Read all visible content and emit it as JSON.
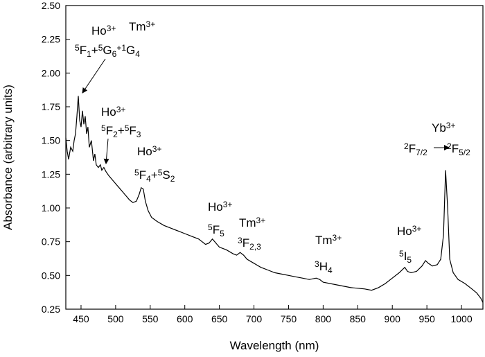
{
  "chart_data": {
    "type": "line",
    "x_label": "Wavelength (nm)",
    "y_label": "Absorbance (arbitrary units)",
    "color": "#000000",
    "xlim": [
      428,
      1031
    ],
    "ylim": [
      0.25,
      2.5
    ],
    "xticks": [
      450,
      500,
      550,
      600,
      650,
      700,
      750,
      800,
      850,
      900,
      950,
      1000
    ],
    "yticks": [
      0.25,
      {
        "value": 0.5,
        "label": "0.50"
      },
      0.75,
      {
        "value": 1,
        "label": "1.00"
      },
      1.25,
      {
        "value": 1.5,
        "label": "1.50"
      },
      1.75,
      {
        "value": 2,
        "label": "2.00"
      },
      2.25,
      {
        "value": 2.5,
        "label": "2.50"
      }
    ],
    "x": [
      428,
      430,
      432,
      435,
      438,
      440,
      442,
      444,
      446,
      448,
      450,
      452,
      454,
      456,
      458,
      460,
      462,
      465,
      468,
      470,
      472,
      475,
      478,
      480,
      483,
      486,
      490,
      495,
      500,
      505,
      510,
      515,
      520,
      525,
      530,
      534,
      537,
      540,
      543,
      547,
      552,
      560,
      570,
      580,
      590,
      600,
      610,
      620,
      630,
      635,
      640,
      645,
      650,
      660,
      670,
      675,
      680,
      685,
      690,
      700,
      710,
      720,
      730,
      740,
      750,
      760,
      770,
      780,
      790,
      795,
      800,
      820,
      840,
      860,
      870,
      880,
      890,
      900,
      910,
      918,
      922,
      927,
      935,
      943,
      948,
      952,
      958,
      965,
      970,
      974,
      977,
      980,
      983,
      988,
      995,
      1005,
      1015,
      1022,
      1028,
      1031
    ],
    "values": [
      1.52,
      1.42,
      1.36,
      1.45,
      1.42,
      1.5,
      1.55,
      1.68,
      1.83,
      1.65,
      1.6,
      1.72,
      1.62,
      1.68,
      1.55,
      1.6,
      1.45,
      1.5,
      1.35,
      1.4,
      1.32,
      1.3,
      1.32,
      1.28,
      1.3,
      1.27,
      1.24,
      1.21,
      1.18,
      1.15,
      1.12,
      1.09,
      1.06,
      1.04,
      1.05,
      1.1,
      1.15,
      1.14,
      1.05,
      0.98,
      0.93,
      0.9,
      0.87,
      0.85,
      0.83,
      0.81,
      0.79,
      0.77,
      0.73,
      0.74,
      0.77,
      0.74,
      0.71,
      0.69,
      0.66,
      0.65,
      0.67,
      0.65,
      0.62,
      0.59,
      0.56,
      0.54,
      0.52,
      0.51,
      0.5,
      0.49,
      0.48,
      0.47,
      0.48,
      0.47,
      0.45,
      0.43,
      0.41,
      0.4,
      0.39,
      0.41,
      0.44,
      0.48,
      0.52,
      0.56,
      0.53,
      0.52,
      0.53,
      0.57,
      0.61,
      0.59,
      0.57,
      0.58,
      0.62,
      0.8,
      1.28,
      1.0,
      0.62,
      0.52,
      0.47,
      0.44,
      0.4,
      0.37,
      0.33,
      0.3
    ],
    "annotations": [
      {
        "parts": [
          {
            "text": "Ho"
          },
          {
            "text": "3+",
            "shift": "sup"
          }
        ]
      },
      {
        "parts": [
          {
            "text": "Tm"
          },
          {
            "text": "3+",
            "shift": "sup"
          }
        ]
      },
      {
        "parts": [
          {
            "text": "5",
            "shift": "sup"
          },
          {
            "text": "F"
          },
          {
            "text": "1",
            "shift": "sub"
          },
          {
            "text": "+"
          },
          {
            "text": "5",
            "shift": "sup"
          },
          {
            "text": "G"
          },
          {
            "text": "6",
            "shift": "sub"
          },
          {
            "text": "+",
            "shift": "sup"
          },
          {
            "text": "1",
            "shift": "sup"
          },
          {
            "text": "G"
          },
          {
            "text": "4",
            "shift": "sub"
          }
        ]
      },
      {
        "parts": [
          {
            "text": "Ho"
          },
          {
            "text": "3+",
            "shift": "sup"
          }
        ]
      },
      {
        "parts": [
          {
            "text": "5",
            "shift": "sup"
          },
          {
            "text": "F"
          },
          {
            "text": "2",
            "shift": "sub"
          },
          {
            "text": "+"
          },
          {
            "text": "5",
            "shift": "sup"
          },
          {
            "text": "F"
          },
          {
            "text": "3",
            "shift": "sub"
          }
        ]
      },
      {
        "parts": [
          {
            "text": "Ho"
          },
          {
            "text": "3+",
            "shift": "sup"
          }
        ]
      },
      {
        "parts": [
          {
            "text": "5",
            "shift": "sup"
          },
          {
            "text": "F"
          },
          {
            "text": "4",
            "shift": "sub"
          },
          {
            "text": "+"
          },
          {
            "text": "5",
            "shift": "sup"
          },
          {
            "text": "S"
          },
          {
            "text": "2",
            "shift": "sub"
          }
        ]
      },
      {
        "parts": [
          {
            "text": "Ho"
          },
          {
            "text": "3+",
            "shift": "sup"
          }
        ]
      },
      {
        "parts": [
          {
            "text": "5",
            "shift": "sup"
          },
          {
            "text": "F"
          },
          {
            "text": "5",
            "shift": "sub"
          }
        ]
      },
      {
        "parts": [
          {
            "text": "Tm"
          },
          {
            "text": "3+",
            "shift": "sup"
          }
        ]
      },
      {
        "parts": [
          {
            "text": "3",
            "shift": "sup"
          },
          {
            "text": "F"
          },
          {
            "text": "2,3",
            "shift": "sub"
          }
        ]
      },
      {
        "parts": [
          {
            "text": "Tm"
          },
          {
            "text": "3+",
            "shift": "sup"
          }
        ]
      },
      {
        "parts": [
          {
            "text": "3",
            "shift": "sup"
          },
          {
            "text": "H"
          },
          {
            "text": "4",
            "shift": "sub"
          }
        ]
      },
      {
        "parts": [
          {
            "text": "Ho"
          },
          {
            "text": "3+",
            "shift": "sup"
          }
        ]
      },
      {
        "parts": [
          {
            "text": "5",
            "shift": "sup"
          },
          {
            "text": "I"
          },
          {
            "text": "5",
            "shift": "sub"
          }
        ]
      },
      {
        "parts": [
          {
            "text": "Yb"
          },
          {
            "text": "3+",
            "shift": "sup"
          }
        ]
      },
      {
        "parts": [
          {
            "text": "2",
            "shift": "sup"
          },
          {
            "text": "F"
          },
          {
            "text": "7/2",
            "shift": "sub"
          }
        ]
      },
      {
        "parts": [
          {
            "text": "2",
            "shift": "sup"
          },
          {
            "text": "F"
          },
          {
            "text": "5/2",
            "shift": "sub"
          }
        ]
      }
    ]
  }
}
